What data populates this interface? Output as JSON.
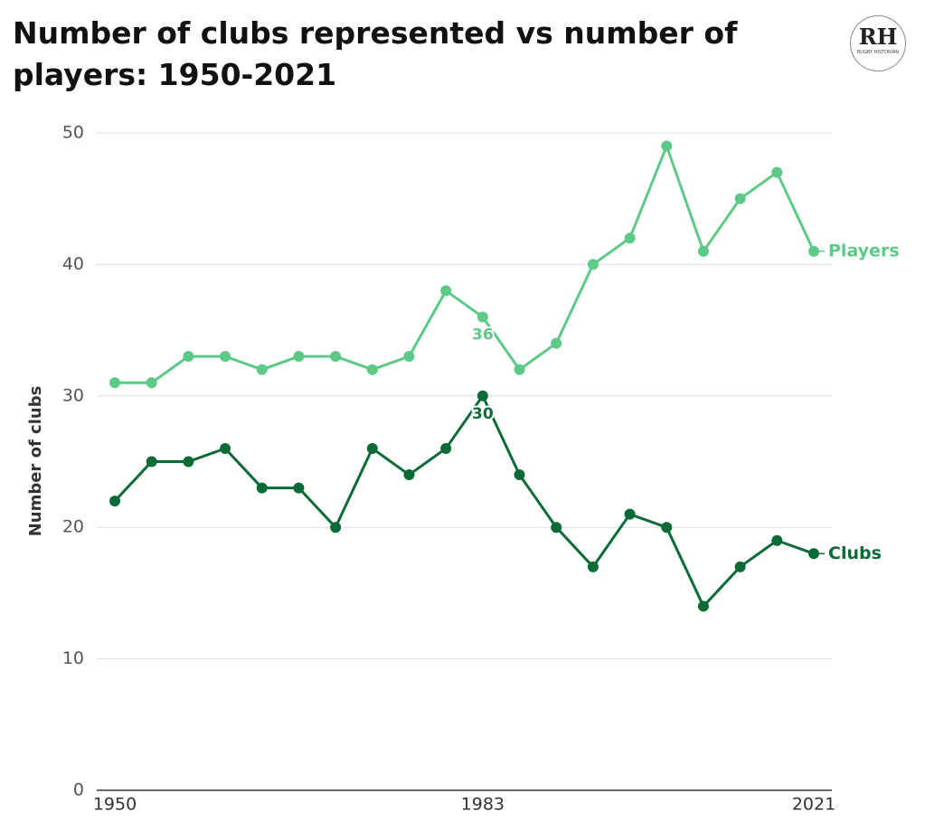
{
  "chart_data": {
    "type": "line",
    "title": "Number of clubs represented vs number of players: 1950-2021",
    "y_label": "Number of clubs",
    "logo": {
      "letters": "RH",
      "text": "RUGBY HISTORIAN"
    },
    "categories": [
      "1950",
      null,
      null,
      null,
      null,
      null,
      null,
      null,
      null,
      null,
      "1983",
      null,
      null,
      null,
      null,
      null,
      null,
      null,
      null,
      "2021"
    ],
    "series": [
      {
        "name": "Players",
        "color": "#5cc987",
        "values": [
          31,
          31,
          33,
          33,
          32,
          33,
          33,
          32,
          33,
          38,
          36,
          32,
          34,
          40,
          42,
          49,
          41,
          45,
          47,
          41
        ]
      },
      {
        "name": "Clubs",
        "color": "#0b6b37",
        "values": [
          22,
          25,
          25,
          26,
          23,
          23,
          20,
          26,
          24,
          26,
          30,
          24,
          20,
          17,
          21,
          20,
          14,
          17,
          19,
          18
        ]
      }
    ],
    "labeled_points": [
      10
    ],
    "ylim": [
      0,
      50
    ],
    "yticks": [
      0,
      10,
      20,
      30,
      40,
      50
    ],
    "grid": true
  }
}
